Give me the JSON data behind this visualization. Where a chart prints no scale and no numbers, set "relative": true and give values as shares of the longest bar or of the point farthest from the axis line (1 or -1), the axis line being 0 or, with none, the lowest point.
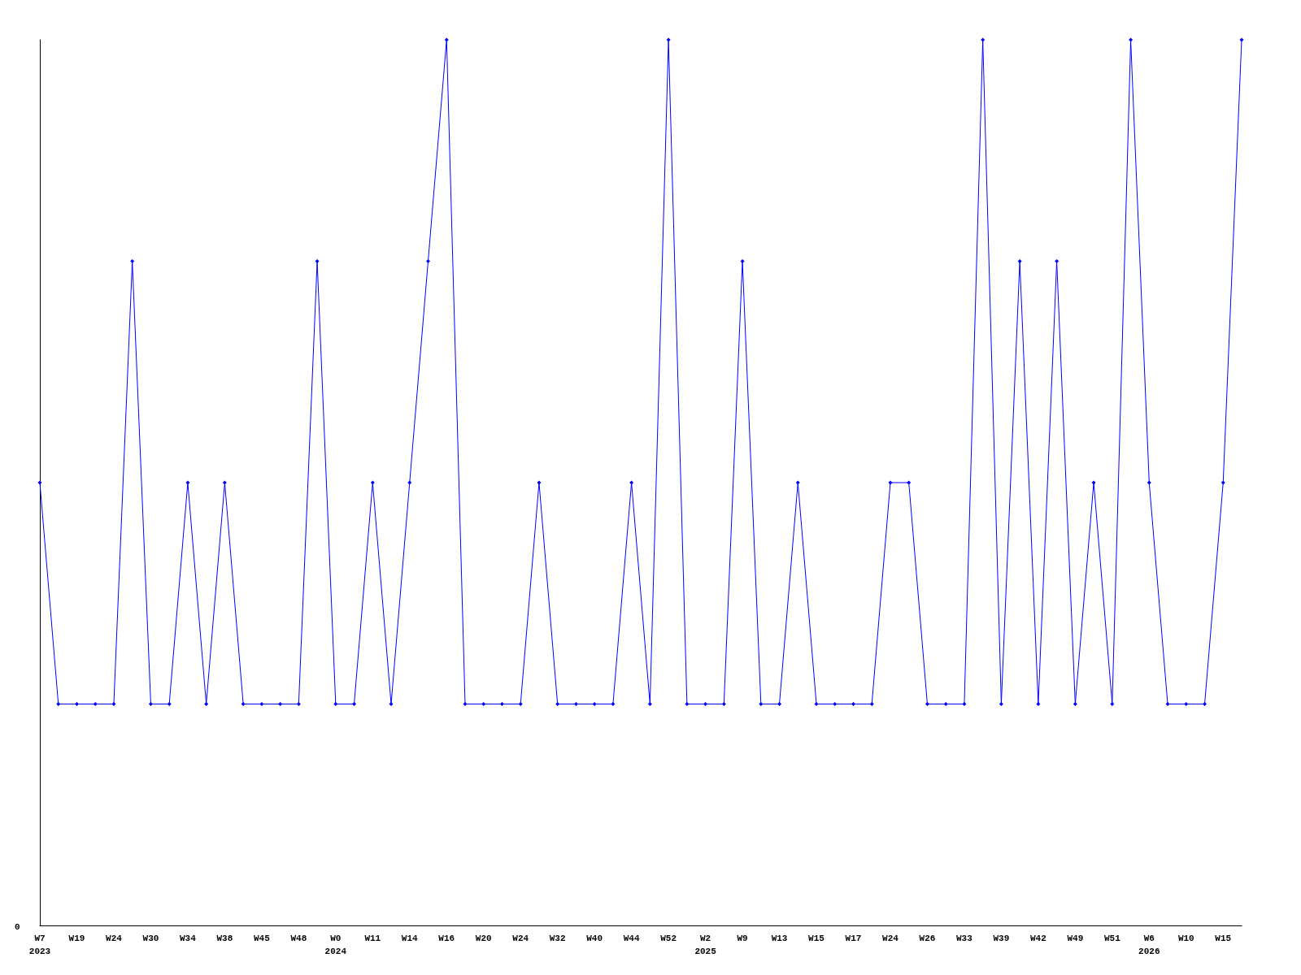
{
  "chart_data": {
    "type": "line",
    "relative": true,
    "color": "#0000ff",
    "marker": "diamond",
    "grid": false,
    "annotations": [
      "0"
    ],
    "categories": [
      "W7\n2023",
      null,
      "W19",
      null,
      "W24",
      null,
      "W30",
      null,
      "W34",
      null,
      "W38",
      null,
      "W45",
      null,
      "W48",
      null,
      "W0\n2024",
      null,
      "W11",
      null,
      "W14",
      null,
      "W16",
      null,
      "W20",
      null,
      "W24",
      null,
      "W32",
      null,
      "W40",
      null,
      "W44",
      null,
      "W52",
      null,
      "W2\n2025",
      null,
      "W9",
      null,
      "W13",
      null,
      "W15",
      null,
      "W17",
      null,
      "W24",
      null,
      "W26",
      null,
      "W33",
      null,
      "W39",
      null,
      "W42",
      null,
      "W49",
      null,
      "W51",
      null,
      "W6\n2026",
      null,
      "W10",
      null,
      "W15",
      null
    ],
    "values": [
      0.5,
      0.25,
      0.25,
      0.25,
      0.25,
      0.75,
      0.25,
      0.25,
      0.5,
      0.25,
      0.5,
      0.25,
      0.25,
      0.25,
      0.25,
      0.75,
      0.25,
      0.25,
      0.5,
      0.25,
      0.5,
      0.75,
      1,
      0.25,
      0.25,
      0.25,
      0.25,
      0.5,
      0.25,
      0.25,
      0.25,
      0.25,
      0.5,
      0.25,
      1,
      0.25,
      0.25,
      0.25,
      0.75,
      0.25,
      0.25,
      0.5,
      0.25,
      0.25,
      0.25,
      0.25,
      0.5,
      0.5,
      0.25,
      0.25,
      0.25,
      1,
      0.25,
      0.75,
      0.25,
      0.75,
      0.25,
      0.5,
      0.25,
      1,
      0.5,
      0.25,
      0.25,
      0.25,
      0.5,
      1
    ]
  }
}
